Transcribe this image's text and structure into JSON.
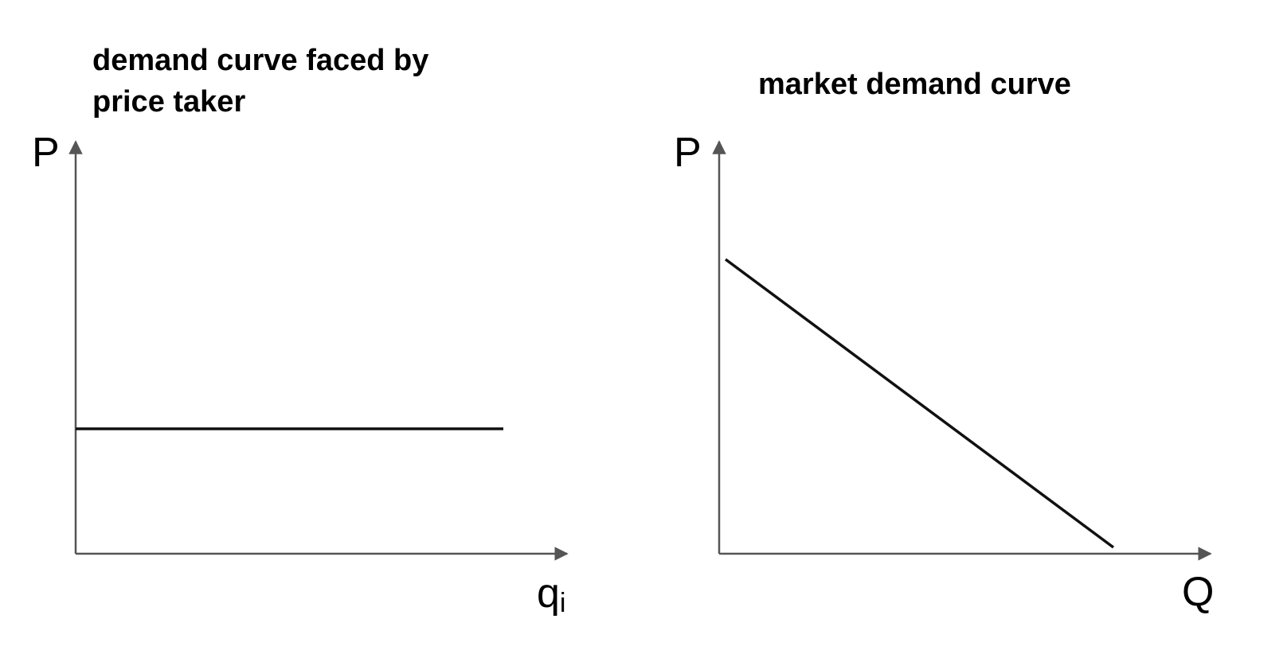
{
  "diagrams": [
    {
      "title_line1": "demand curve faced by",
      "title_line2": "price taker",
      "y_axis_label": "P",
      "x_axis_label": "q",
      "x_axis_subscript": "i",
      "curve": "horizontal demand line"
    },
    {
      "title": "market demand curve",
      "y_axis_label": "P",
      "x_axis_label": "Q",
      "curve": "downward-sloping demand line"
    }
  ],
  "colors": {
    "axis": "#555555",
    "curve": "#111111",
    "text": "#000000"
  }
}
